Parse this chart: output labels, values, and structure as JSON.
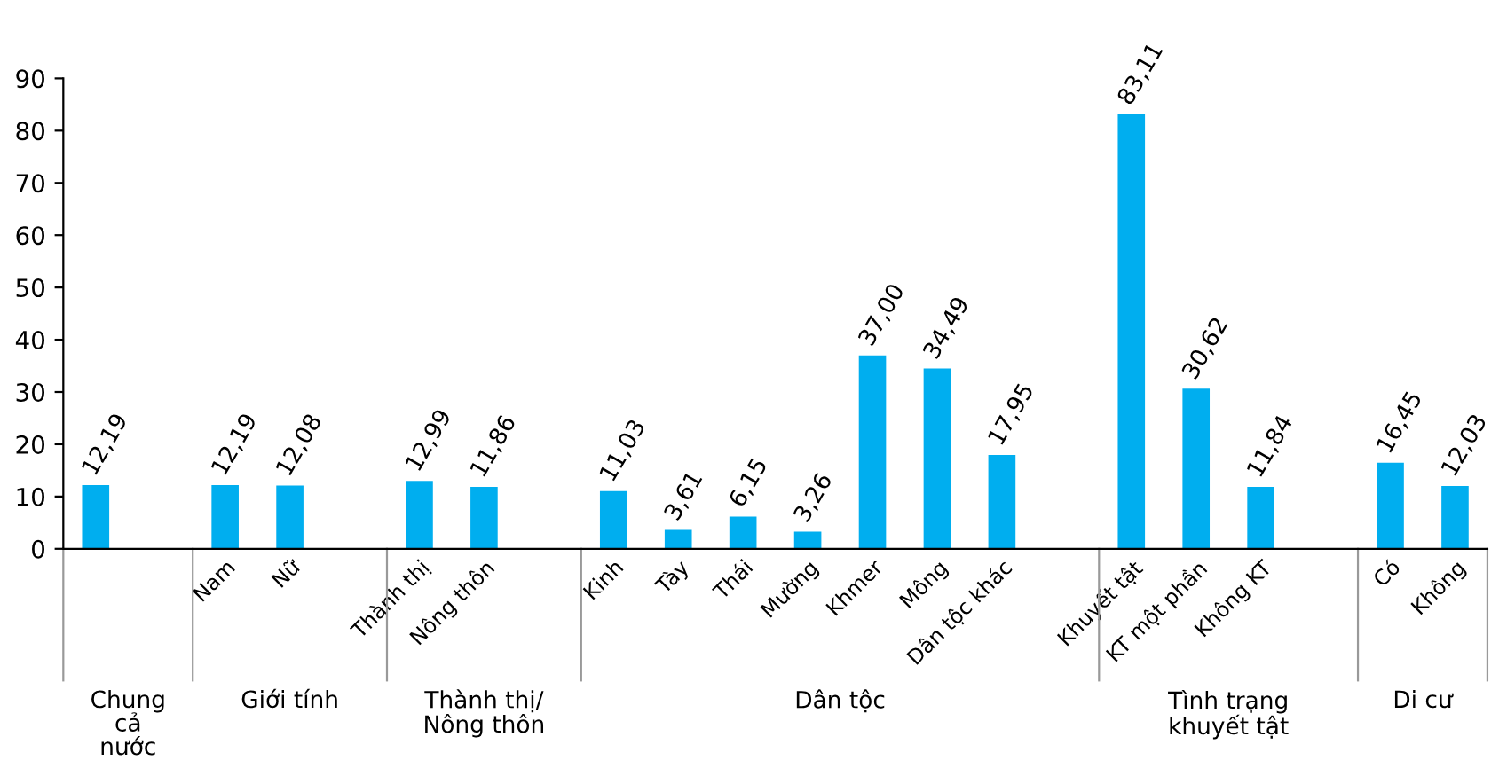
{
  "chart_data": {
    "type": "bar",
    "categories": [
      null,
      null,
      "Nam",
      "Nữ",
      null,
      "Thành thị",
      "Nông thôn",
      null,
      "Kinh",
      "Tày",
      "Thái",
      "Mường",
      "Khmer",
      "Mông",
      "Dân tộc khác",
      null,
      "Khuyết tật",
      "KT một phần",
      "Không KT",
      null,
      "Có",
      "Không"
    ],
    "values": [
      12.19,
      null,
      12.19,
      12.08,
      null,
      12.99,
      11.86,
      null,
      11.03,
      3.61,
      6.15,
      3.26,
      37.0,
      34.49,
      17.95,
      null,
      83.11,
      30.62,
      11.84,
      null,
      16.45,
      12.03
    ],
    "value_labels": [
      "12,19",
      null,
      "12,19",
      "12,08",
      null,
      "12,99",
      "11,86",
      null,
      "11,03",
      "3,61",
      "6,15",
      "3,26",
      "37,00",
      "34,49",
      "17,95",
      null,
      "83,11",
      "30,62",
      "11,84",
      null,
      "16,45",
      "12,03"
    ],
    "color": "#00aeef",
    "ylim": [
      0,
      90
    ],
    "yticks": [
      0,
      10,
      20,
      30,
      40,
      50,
      60,
      70,
      80,
      90
    ],
    "grid": false,
    "annotations": [
      "Chung\ncả\nnước",
      "Giới tính",
      "Thành thị/\nNông thôn",
      "Dân tộc",
      "Tình trạng\nkhuyết tật",
      "Di cư"
    ]
  }
}
